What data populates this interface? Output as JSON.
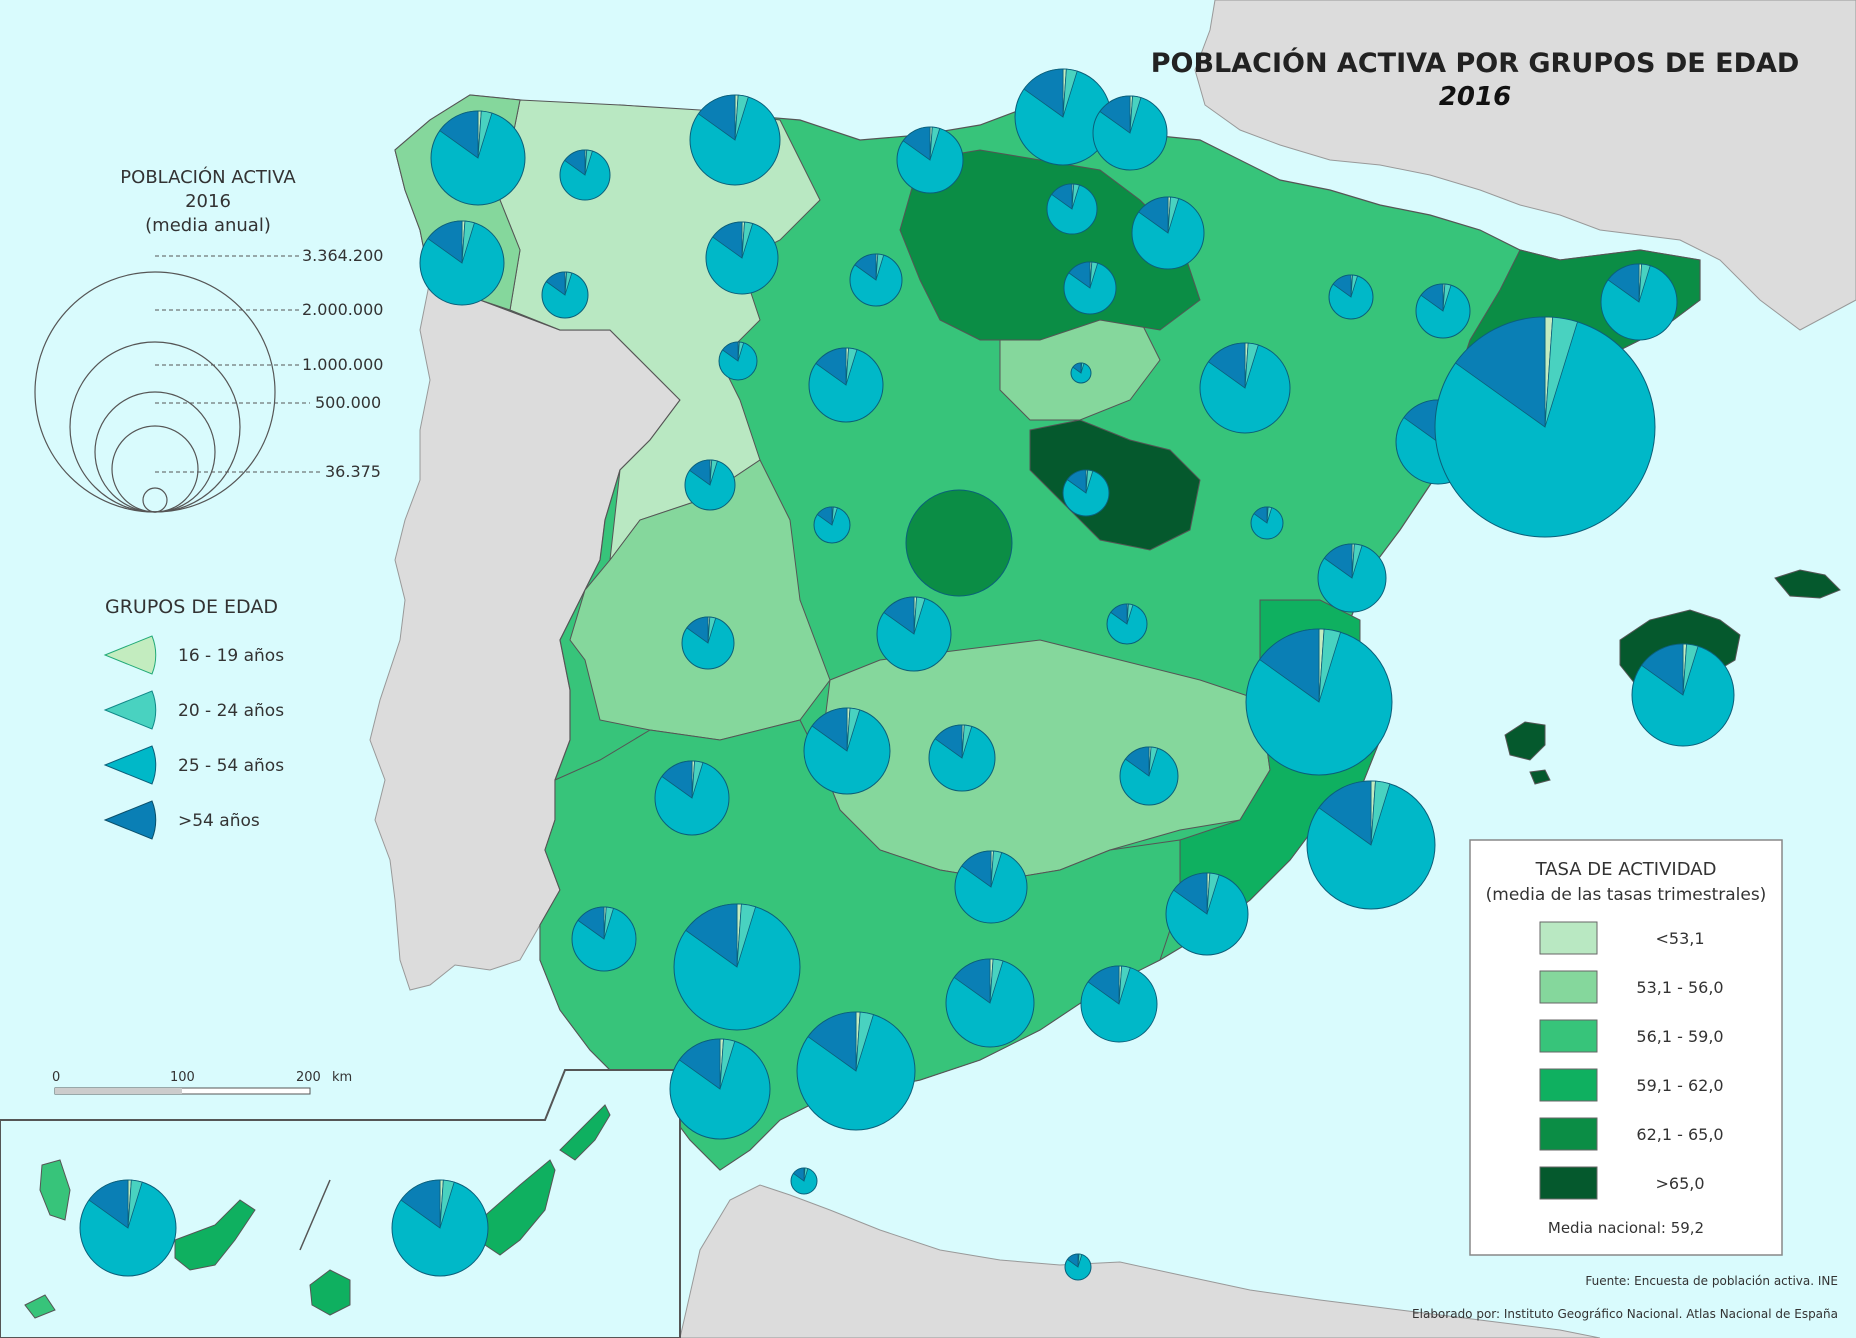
{
  "title": "POBLACIÓN ACTIVA POR GRUPOS DE EDAD",
  "year": "2016",
  "size_legend": {
    "title_line1": "POBLACIÓN ACTIVA",
    "title_line2": "2016",
    "title_line3": "(media anual)",
    "values": [
      "3.364.200",
      "2.000.000",
      "1.000.000",
      "500.000",
      "36.375"
    ]
  },
  "age_legend": {
    "title": "GRUPOS DE EDAD",
    "items": [
      {
        "label": "16 - 19 años",
        "color": "#c3ecbf"
      },
      {
        "label": "20 - 24 años",
        "color": "#49d2c0"
      },
      {
        "label": "25 - 54 años",
        "color": "#00b8c8"
      },
      {
        "label": ">54 años",
        "color": "#0a7fb5"
      }
    ]
  },
  "rate_legend": {
    "title_line1": "TASA DE ACTIVIDAD",
    "title_line2": "(media de las tasas trimestrales)",
    "classes": [
      {
        "label": "<53,1",
        "color": "#b9e8c2"
      },
      {
        "label": "53,1 - 56,0",
        "color": "#85d79c"
      },
      {
        "label": "56,1 - 59,0",
        "color": "#37c47a"
      },
      {
        "label": "59,1 - 62,0",
        "color": "#0fb060"
      },
      {
        "label": "62,1 - 65,0",
        "color": "#0b8d45"
      },
      {
        "label": ">65,0",
        "color": "#05592d"
      }
    ],
    "national_mean": "Media nacional: 59,2"
  },
  "scale_bar": {
    "ticks": [
      "0",
      "100",
      "200"
    ],
    "unit": "km"
  },
  "credits": {
    "source": "Fuente: Encuesta de población activa. INE",
    "author": "Elaborado por: Instituto Geográfico Nacional. Atlas Nacional de España"
  },
  "colors": {
    "sea": "#d9fbfd",
    "foreign_land": "#dcdcdc",
    "pie_outline": "#0b5f7a"
  }
}
